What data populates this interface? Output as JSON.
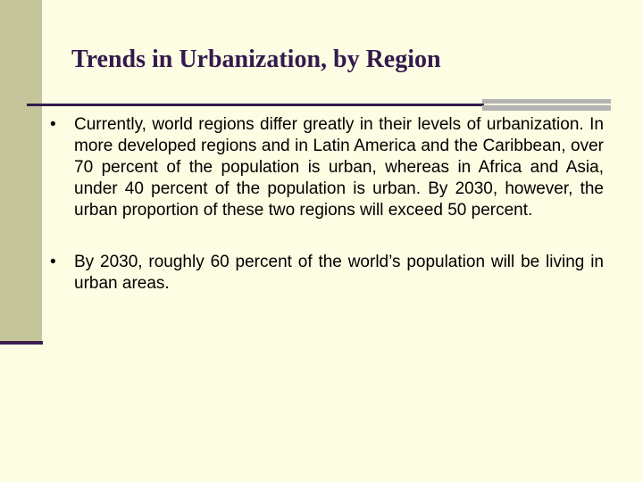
{
  "slide": {
    "title": "Trends in Urbanization, by Region",
    "bullet_marker": "•",
    "bullets": [
      "Currently, world regions differ greatly in their levels of urbanization. In more developed regions and in Latin America and the Caribbean, over 70 percent of the population is urban, whereas in Africa and Asia, under 40 percent of the population is urban. By 2030, however, the urban proportion of these two regions will exceed 50 percent.",
      "By 2030, roughly 60 percent of the world’s population will be living in urban areas."
    ]
  },
  "colors": {
    "background": "#fdfde3",
    "left_bar": "#c4c59b",
    "accent_dark": "#331a4d",
    "accent_grey": "#b3b3b3"
  }
}
